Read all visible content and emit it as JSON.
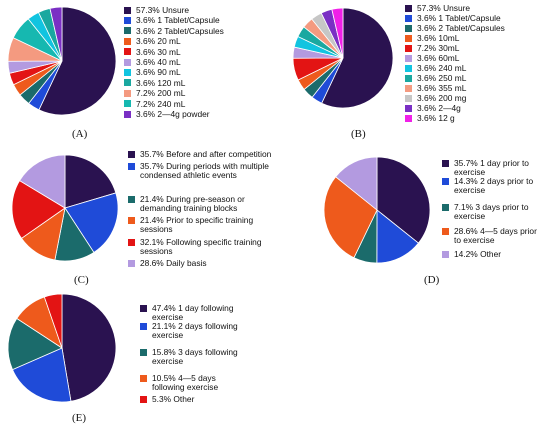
{
  "chart_data": [
    {
      "type": "pie",
      "panel_label": "(A)",
      "colors": [
        "#2a1250",
        "#1f4bd8",
        "#1b6b6b",
        "#ee5a1c",
        "#e31414",
        "#b39ae0",
        "#11c4e0",
        "#1aa8a0",
        "#f49a80",
        "#16b8b0",
        "#7a2fc4"
      ],
      "slices": [
        {
          "label": "57.3% Unsure",
          "value": 57.3
        },
        {
          "label": "3.6% 1 Tablet/Capsule",
          "value": 3.6
        },
        {
          "label": "3.6% 2 Tablet/Capsules",
          "value": 3.6
        },
        {
          "label": "3.6% 20 mL",
          "value": 3.6
        },
        {
          "label": "3.6% 30 mL",
          "value": 3.6
        },
        {
          "label": "3.6% 40 mL",
          "value": 3.6
        },
        {
          "label": "3.6% 90 mL",
          "value": 3.6
        },
        {
          "label": "3.6% 120 mL",
          "value": 3.6
        },
        {
          "label": "7.2% 200 mL",
          "value": 7.2
        },
        {
          "label": "7.2% 240 mL",
          "value": 7.2
        },
        {
          "label": "3.6% 2—4g powder",
          "value": 3.6
        }
      ],
      "pie_order": [
        0,
        1,
        2,
        3,
        4,
        5,
        8,
        9,
        6,
        7,
        10
      ]
    },
    {
      "type": "pie",
      "panel_label": "(B)",
      "colors": [
        "#2a1250",
        "#1f4bd8",
        "#1b6b6b",
        "#ee5a1c",
        "#e31414",
        "#b39ae0",
        "#11c4e0",
        "#1aa8a0",
        "#f49a80",
        "#c6c6c6",
        "#7a2fc4",
        "#f020e8"
      ],
      "slices": [
        {
          "label": "57.3% Unsure",
          "value": 57.3
        },
        {
          "label": "3.6% 1 Tablet/Capsule",
          "value": 3.6
        },
        {
          "label": "3.6% 2 Tablet/Capsules",
          "value": 3.6
        },
        {
          "label": "3.6% 10mL",
          "value": 3.6
        },
        {
          "label": "7.2% 30mL",
          "value": 7.2
        },
        {
          "label": "3.6% 60mL",
          "value": 3.6
        },
        {
          "label": "3.6% 240 mL",
          "value": 3.6
        },
        {
          "label": "3.6% 250 mL",
          "value": 3.6
        },
        {
          "label": "3.6% 355 mL",
          "value": 3.6
        },
        {
          "label": "3.6% 200 mg",
          "value": 3.6
        },
        {
          "label": "3.6% 2—4g",
          "value": 3.6
        },
        {
          "label": "3.6% 12 g",
          "value": 3.6
        }
      ],
      "pie_order": [
        0,
        1,
        2,
        3,
        4,
        5,
        6,
        7,
        8,
        9,
        10,
        11
      ]
    },
    {
      "type": "pie",
      "panel_label": "(C)",
      "colors": [
        "#2a1250",
        "#1f4bd8",
        "#1b6b6b",
        "#ee5a1c",
        "#e31414",
        "#b39ae0"
      ],
      "slices": [
        {
          "label": "35.7% Before and after competition",
          "value": 35.7
        },
        {
          "label": "35.7% During periods with multiple condensed athletic events",
          "value": 35.7
        },
        {
          "label": "21.4% During pre-season or demanding training blocks",
          "value": 21.4
        },
        {
          "label": "21.4% Prior to specific training sessions",
          "value": 21.4
        },
        {
          "label": "32.1% Following specific training sessions",
          "value": 32.1
        },
        {
          "label": "28.6% Daily basis",
          "value": 28.6
        }
      ],
      "pie_order": [
        0,
        1,
        2,
        3,
        4,
        5
      ]
    },
    {
      "type": "pie",
      "panel_label": "(D)",
      "colors": [
        "#2a1250",
        "#1f4bd8",
        "#1b6b6b",
        "#ee5a1c",
        "#b39ae0"
      ],
      "slices": [
        {
          "label": "35.7% 1 day prior to exercise",
          "value": 35.7
        },
        {
          "label": "14.3% 2 days prior to exercise",
          "value": 14.3
        },
        {
          "label": "7.1% 3 days prior to exercise",
          "value": 7.1
        },
        {
          "label": "28.6% 4—5 days prior to exercise",
          "value": 28.6
        },
        {
          "label": "14.2% Other",
          "value": 14.2
        }
      ],
      "pie_order": [
        0,
        1,
        2,
        3,
        4
      ]
    },
    {
      "type": "pie",
      "panel_label": "(E)",
      "colors": [
        "#2a1250",
        "#1f4bd8",
        "#1b6b6b",
        "#ee5a1c",
        "#e31414"
      ],
      "slices": [
        {
          "label": "47.4% 1 day following exercise",
          "value": 47.4
        },
        {
          "label": "21.1% 2 days following exercise",
          "value": 21.1
        },
        {
          "label": "15.8% 3 days following exercise",
          "value": 15.8
        },
        {
          "label": "10.5% 4—5 days following exercise",
          "value": 10.5
        },
        {
          "label": "5.3% Other",
          "value": 5.3
        }
      ],
      "pie_order": [
        0,
        1,
        2,
        3,
        4
      ]
    }
  ]
}
